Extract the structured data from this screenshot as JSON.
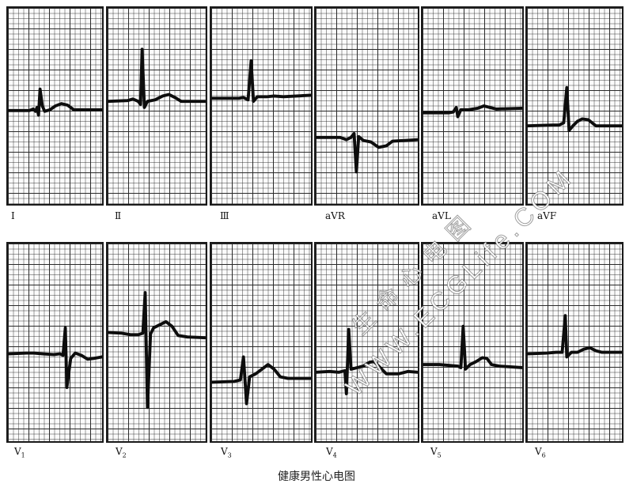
{
  "figure": {
    "leads": [
      {
        "name": "I"
      },
      {
        "name": "Ⅱ"
      },
      {
        "name": "Ⅲ"
      },
      {
        "name": "aVR"
      },
      {
        "name": "aVL"
      },
      {
        "name": "aVF"
      },
      {
        "name": "V",
        "sub": "1"
      },
      {
        "name": "V",
        "sub": "2"
      },
      {
        "name": "V",
        "sub": "3"
      },
      {
        "name": "V",
        "sub": "4"
      },
      {
        "name": "V",
        "sub": "5"
      },
      {
        "name": "V",
        "sub": "6"
      }
    ],
    "caption": "健康男性心电图"
  },
  "watermark": {
    "url": "WWW.ECGLife.COM",
    "cn": "生命心电图"
  }
}
